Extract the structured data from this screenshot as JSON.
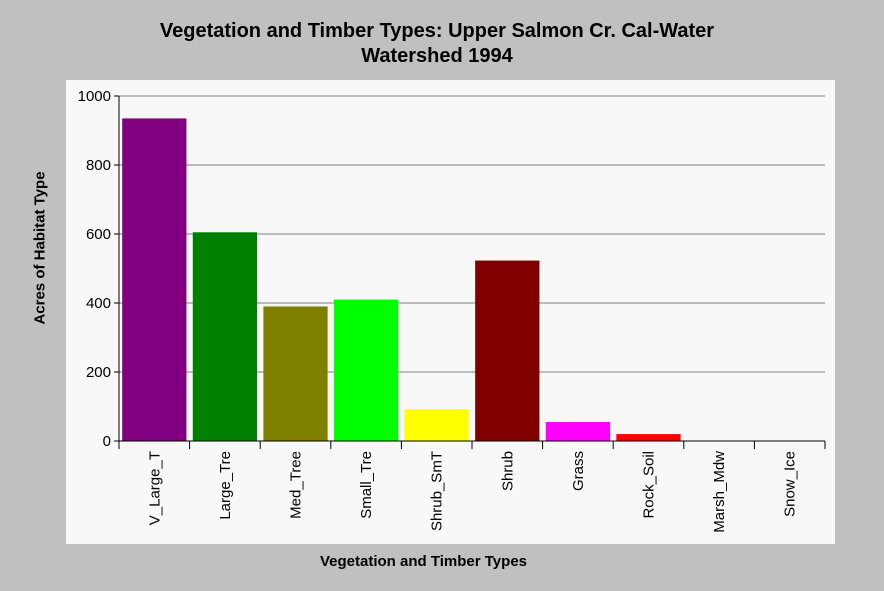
{
  "chart_data": {
    "type": "bar",
    "title_lines": [
      "Vegetation and Timber Types: Upper Salmon Cr. Cal-Water",
      "Watershed 1994"
    ],
    "xlabel": "Vegetation and Timber Types",
    "ylabel": "Acres of Habitat Type",
    "ylim": [
      0,
      1000
    ],
    "yticks": [
      0,
      200,
      400,
      600,
      800,
      1000
    ],
    "grid": true,
    "categories": [
      "V_Large_T",
      "Large_Tre",
      "Med_Tree",
      "Small_Tre",
      "Shrub_SmT",
      "Shrub",
      "Grass",
      "Rock_Soil",
      "Marsh_Mdw",
      "Snow_Ice"
    ],
    "values": [
      935,
      605,
      390,
      410,
      92,
      523,
      55,
      20,
      0,
      0
    ],
    "colors": [
      "#800080",
      "#008000",
      "#808000",
      "#00ff00",
      "#ffff00",
      "#800000",
      "#ff00ff",
      "#ff0000",
      "#000080",
      "#00ffff"
    ]
  }
}
